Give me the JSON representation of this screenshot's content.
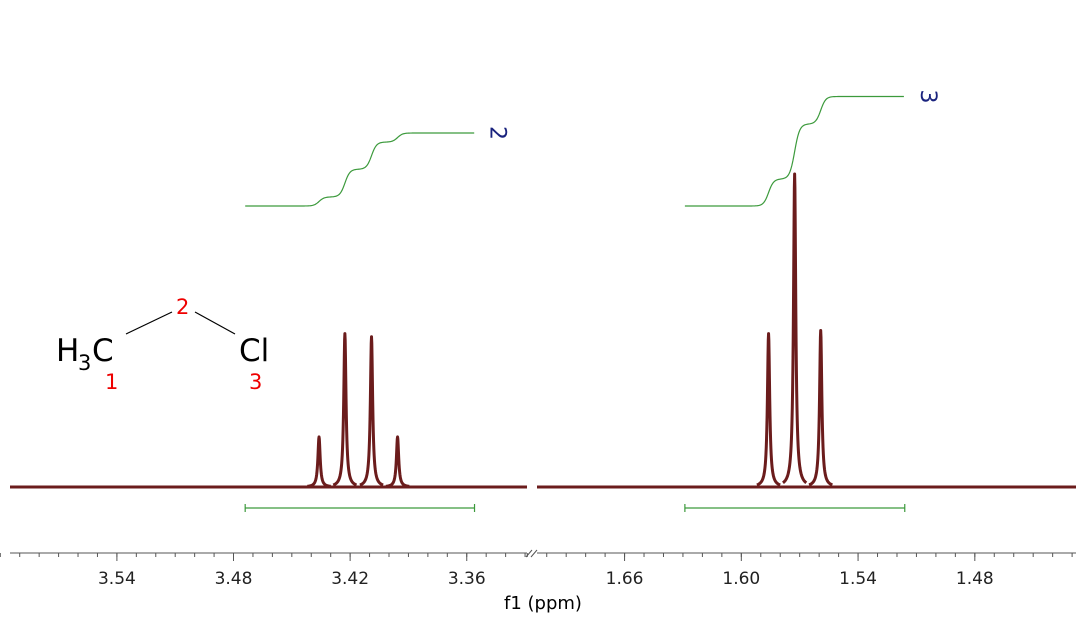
{
  "chart_data": {
    "type": "nmr",
    "xlabel": "f1 (ppm)",
    "color": "#6b1c1c",
    "integral_color": "#3c9a3c",
    "integral_label_color": "#1a237e",
    "panels": [
      {
        "xlim": [
          3.595,
          3.329
        ],
        "xticks": [
          3.54,
          3.48,
          3.42,
          3.36
        ],
        "x": [
          3.436,
          3.4227,
          3.409,
          3.3956
        ],
        "values": [
          16,
          49,
          48,
          16
        ],
        "integral": {
          "range": [
            3.474,
            3.356
          ],
          "value": 2
        }
      },
      {
        "xlim": [
          1.705,
          1.428
        ],
        "xticks": [
          1.66,
          {
            "value": 1.6,
            "label": "1.60"
          },
          1.54,
          1.48
        ],
        "x": [
          1.586,
          1.5726,
          1.5592
        ],
        "values": [
          49,
          100,
          50
        ],
        "integral": {
          "range": [
            1.629,
            1.516
          ],
          "value": 3
        }
      }
    ]
  },
  "structure": {
    "atoms": [
      "H",
      "3",
      "C",
      "Cl"
    ],
    "labels": [
      "1",
      "2",
      "3"
    ]
  }
}
